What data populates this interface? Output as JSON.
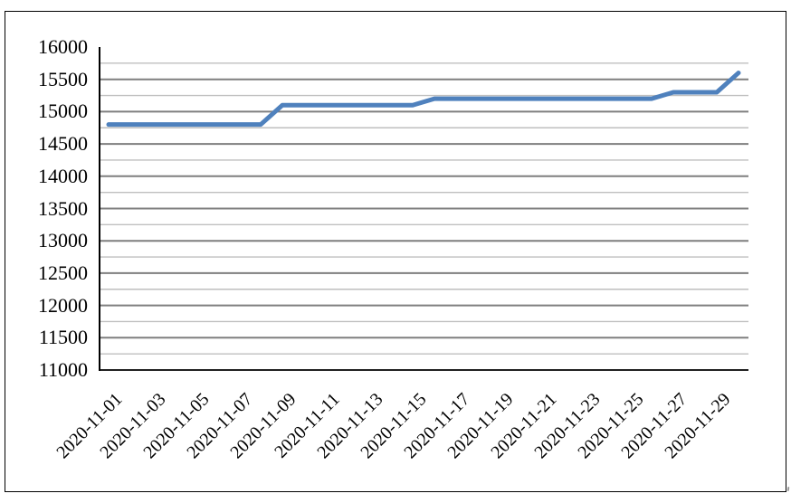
{
  "chart_data": {
    "type": "line",
    "title": "",
    "legend_position": "none",
    "categories": [
      "2020-11-01",
      "2020-11-02",
      "2020-11-03",
      "2020-11-04",
      "2020-11-05",
      "2020-11-06",
      "2020-11-07",
      "2020-11-08",
      "2020-11-09",
      "2020-11-10",
      "2020-11-11",
      "2020-11-12",
      "2020-11-13",
      "2020-11-14",
      "2020-11-15",
      "2020-11-16",
      "2020-11-17",
      "2020-11-18",
      "2020-11-19",
      "2020-11-20",
      "2020-11-21",
      "2020-11-22",
      "2020-11-23",
      "2020-11-24",
      "2020-11-25",
      "2020-11-26",
      "2020-11-27",
      "2020-11-28",
      "2020-11-29",
      "2020-11-30"
    ],
    "values": [
      14800,
      14800,
      14800,
      14800,
      14800,
      14800,
      14800,
      14800,
      15100,
      15100,
      15100,
      15100,
      15100,
      15100,
      15100,
      15200,
      15200,
      15200,
      15200,
      15200,
      15200,
      15200,
      15200,
      15200,
      15200,
      15200,
      15300,
      15300,
      15300,
      15600
    ],
    "xticklabels": [
      "2020-11-01",
      "2020-11-03",
      "2020-11-05",
      "2020-11-07",
      "2020-11-09",
      "2020-11-11",
      "2020-11-13",
      "2020-11-15",
      "2020-11-17",
      "2020-11-19",
      "2020-11-21",
      "2020-11-23",
      "2020-11-25",
      "2020-11-27",
      "2020-11-29"
    ],
    "yticks": [
      11000,
      11500,
      12000,
      12500,
      13000,
      13500,
      14000,
      14500,
      15000,
      15500,
      16000
    ],
    "ylim": [
      11000,
      16000
    ],
    "ytick_step": 500,
    "minor_grid_step": 250,
    "grid": "horizontal-major-and-minor",
    "xlabel": "",
    "ylabel": "",
    "colors": {
      "line": "#4F81BD",
      "major_grid": "#7F7F7F",
      "minor_grid": "#BFBFBF",
      "axis": "#000000",
      "border": "#000000",
      "background": "#FFFFFF"
    }
  }
}
